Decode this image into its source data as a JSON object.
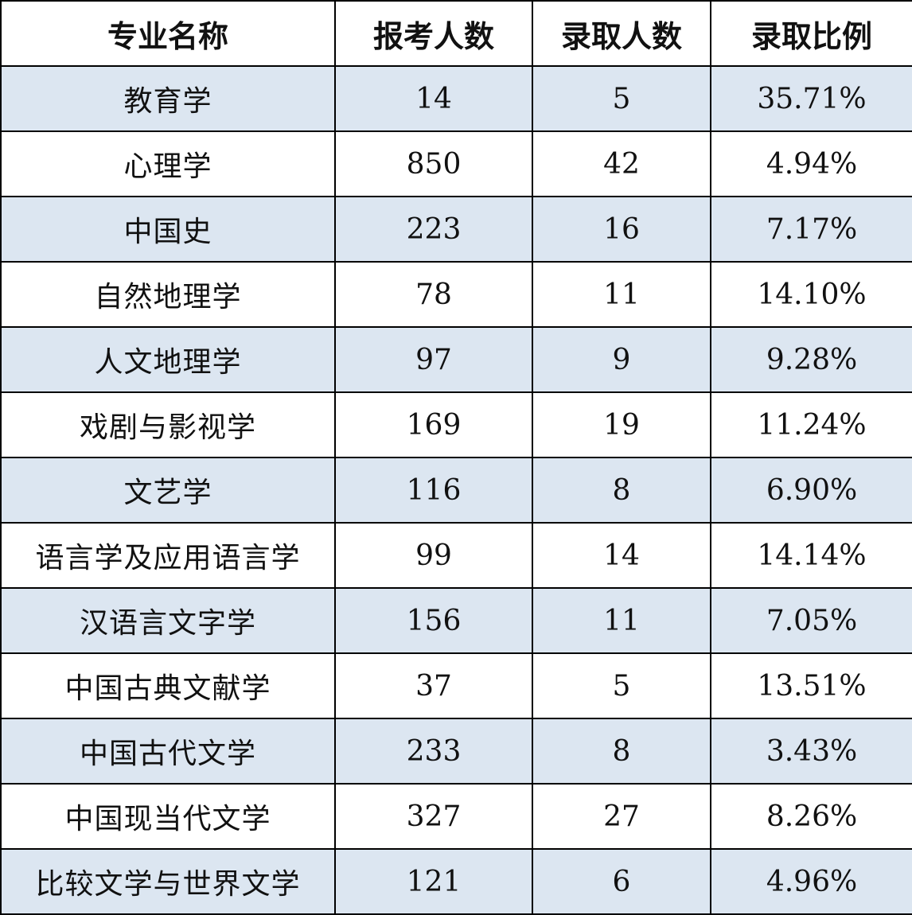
{
  "table": {
    "headers": [
      "专业名称",
      "报考人数",
      "录取人数",
      "录取比例"
    ],
    "rows": [
      {
        "major": "教育学",
        "applicants": "14",
        "admitted": "5",
        "ratio": "35.71%"
      },
      {
        "major": "心理学",
        "applicants": "850",
        "admitted": "42",
        "ratio": "4.94%"
      },
      {
        "major": "中国史",
        "applicants": "223",
        "admitted": "16",
        "ratio": "7.17%"
      },
      {
        "major": "自然地理学",
        "applicants": "78",
        "admitted": "11",
        "ratio": "14.10%"
      },
      {
        "major": "人文地理学",
        "applicants": "97",
        "admitted": "9",
        "ratio": "9.28%"
      },
      {
        "major": "戏剧与影视学",
        "applicants": "169",
        "admitted": "19",
        "ratio": "11.24%"
      },
      {
        "major": "文艺学",
        "applicants": "116",
        "admitted": "8",
        "ratio": "6.90%"
      },
      {
        "major": "语言学及应用语言学",
        "applicants": "99",
        "admitted": "14",
        "ratio": "14.14%"
      },
      {
        "major": "汉语言文字学",
        "applicants": "156",
        "admitted": "11",
        "ratio": "7.05%"
      },
      {
        "major": "中国古典文献学",
        "applicants": "37",
        "admitted": "5",
        "ratio": "13.51%"
      },
      {
        "major": "中国古代文学",
        "applicants": "233",
        "admitted": "8",
        "ratio": "3.43%"
      },
      {
        "major": "中国现当代文学",
        "applicants": "327",
        "admitted": "27",
        "ratio": "8.26%"
      },
      {
        "major": "比较文学与世界文学",
        "applicants": "121",
        "admitted": "6",
        "ratio": "4.96%"
      }
    ]
  },
  "colors": {
    "shaded_row": "#dce6f1",
    "plain_row": "#ffffff",
    "border": "#000000"
  }
}
